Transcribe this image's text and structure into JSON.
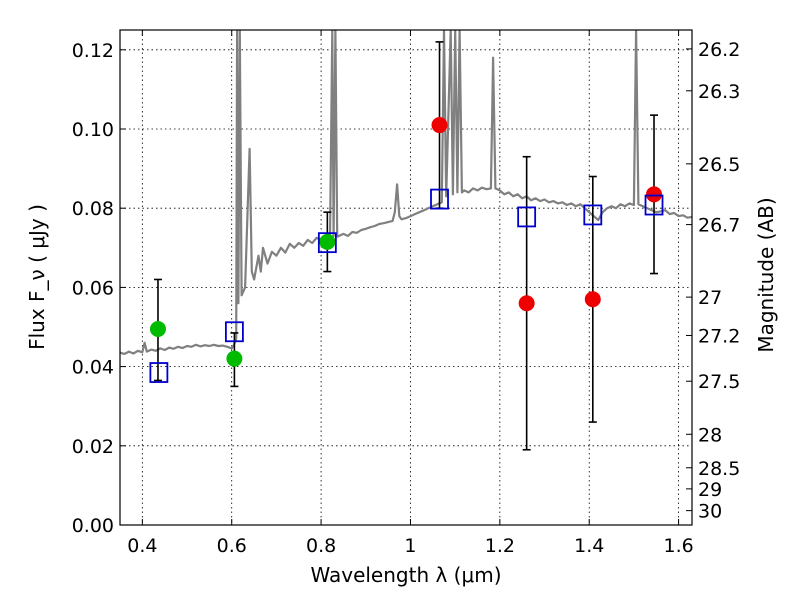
{
  "chart_data": {
    "type": "scatter",
    "xlabel": "Wavelength  λ (μm)",
    "ylabel": "Flux  F_ν  ( μJy )",
    "y2label": "Magnitude (AB)",
    "xlim": [
      0.35,
      1.63
    ],
    "ylim": [
      0.0,
      0.125
    ],
    "grid": true,
    "x_ticks": [
      "0.4",
      "0.6",
      "0.8",
      "1",
      "1.2",
      "1.4",
      "1.6"
    ],
    "y_ticks": [
      "0.00",
      "0.02",
      "0.04",
      "0.06",
      "0.08",
      "0.10",
      "0.12"
    ],
    "mag_ticks": [
      "26.2",
      "26.3",
      "26.5",
      "26.7",
      "27",
      "27.2",
      "27.5",
      "28",
      "28.5",
      "29",
      "30"
    ],
    "series": [
      {
        "marker": "circle",
        "color": "#00bb00",
        "points": [
          {
            "x": 0.435,
            "y": 0.0495,
            "err_low": 0.0365,
            "err_high": 0.062
          },
          {
            "x": 0.606,
            "y": 0.042,
            "err_low": 0.035,
            "err_high": 0.0485
          },
          {
            "x": 0.814,
            "y": 0.0715,
            "err_low": 0.064,
            "err_high": 0.079
          }
        ]
      },
      {
        "marker": "circle",
        "color": "#ee0000",
        "points": [
          {
            "x": 1.065,
            "y": 0.101,
            "err_low": 0.08,
            "err_high": 0.122
          },
          {
            "x": 1.26,
            "y": 0.056,
            "err_low": 0.019,
            "err_high": 0.093
          },
          {
            "x": 1.408,
            "y": 0.057,
            "err_low": 0.026,
            "err_high": 0.088
          },
          {
            "x": 1.545,
            "y": 0.0835,
            "err_low": 0.0635,
            "err_high": 0.1035
          }
        ]
      },
      {
        "marker": "open-square",
        "color": "#0000cc",
        "points": [
          {
            "x": 0.437,
            "y": 0.0385
          },
          {
            "x": 0.606,
            "y": 0.0488
          },
          {
            "x": 0.814,
            "y": 0.0713
          },
          {
            "x": 1.065,
            "y": 0.0823
          },
          {
            "x": 1.26,
            "y": 0.0778
          },
          {
            "x": 1.408,
            "y": 0.0783
          },
          {
            "x": 1.545,
            "y": 0.0808
          }
        ]
      }
    ],
    "spectrum": {
      "color": "#808080",
      "points": [
        [
          0.35,
          0.0435
        ],
        [
          0.36,
          0.0432
        ],
        [
          0.37,
          0.0438
        ],
        [
          0.38,
          0.0433
        ],
        [
          0.39,
          0.044
        ],
        [
          0.4,
          0.0436
        ],
        [
          0.405,
          0.046
        ],
        [
          0.41,
          0.0438
        ],
        [
          0.42,
          0.0443
        ],
        [
          0.43,
          0.044
        ],
        [
          0.44,
          0.0446
        ],
        [
          0.45,
          0.0442
        ],
        [
          0.46,
          0.0448
        ],
        [
          0.47,
          0.0445
        ],
        [
          0.48,
          0.045
        ],
        [
          0.49,
          0.0447
        ],
        [
          0.5,
          0.0452
        ],
        [
          0.51,
          0.045
        ],
        [
          0.52,
          0.0455
        ],
        [
          0.53,
          0.0451
        ],
        [
          0.54,
          0.0454
        ],
        [
          0.55,
          0.0452
        ],
        [
          0.56,
          0.0455
        ],
        [
          0.57,
          0.0452
        ],
        [
          0.58,
          0.0453
        ],
        [
          0.59,
          0.045
        ],
        [
          0.6,
          0.0446
        ],
        [
          0.605,
          0.0455
        ],
        [
          0.61,
          0.047
        ],
        [
          0.612,
          0.125
        ],
        [
          0.615,
          0.056
        ],
        [
          0.618,
          0.125
        ],
        [
          0.622,
          0.058
        ],
        [
          0.63,
          0.06
        ],
        [
          0.64,
          0.095
        ],
        [
          0.645,
          0.064
        ],
        [
          0.65,
          0.062
        ],
        [
          0.66,
          0.068
        ],
        [
          0.665,
          0.064
        ],
        [
          0.67,
          0.07
        ],
        [
          0.68,
          0.066
        ],
        [
          0.69,
          0.069
        ],
        [
          0.7,
          0.068
        ],
        [
          0.71,
          0.07
        ],
        [
          0.72,
          0.0688
        ],
        [
          0.73,
          0.071
        ],
        [
          0.74,
          0.07
        ],
        [
          0.75,
          0.0712
        ],
        [
          0.76,
          0.0705
        ],
        [
          0.77,
          0.072
        ],
        [
          0.78,
          0.0712
        ],
        [
          0.79,
          0.0725
        ],
        [
          0.8,
          0.072
        ],
        [
          0.81,
          0.0728
        ],
        [
          0.82,
          0.0722
        ],
        [
          0.825,
          0.125
        ],
        [
          0.828,
          0.073
        ],
        [
          0.832,
          0.125
        ],
        [
          0.836,
          0.0728
        ],
        [
          0.85,
          0.0735
        ],
        [
          0.86,
          0.073
        ],
        [
          0.87,
          0.074
        ],
        [
          0.88,
          0.0738
        ],
        [
          0.89,
          0.0745
        ],
        [
          0.9,
          0.0748
        ],
        [
          0.91,
          0.0752
        ],
        [
          0.92,
          0.0755
        ],
        [
          0.93,
          0.076
        ],
        [
          0.94,
          0.0762
        ],
        [
          0.95,
          0.0765
        ],
        [
          0.96,
          0.0768
        ],
        [
          0.965,
          0.079
        ],
        [
          0.97,
          0.086
        ],
        [
          0.975,
          0.078
        ],
        [
          0.98,
          0.0772
        ],
        [
          0.99,
          0.0775
        ],
        [
          1.0,
          0.078
        ],
        [
          1.01,
          0.0785
        ],
        [
          1.02,
          0.079
        ],
        [
          1.03,
          0.0795
        ],
        [
          1.04,
          0.08
        ],
        [
          1.05,
          0.0805
        ],
        [
          1.06,
          0.081
        ],
        [
          1.07,
          0.0815
        ],
        [
          1.075,
          0.125
        ],
        [
          1.08,
          0.083
        ],
        [
          1.09,
          0.125
        ],
        [
          1.095,
          0.0835
        ],
        [
          1.1,
          0.125
        ],
        [
          1.105,
          0.084
        ],
        [
          1.11,
          0.125
        ],
        [
          1.115,
          0.084
        ],
        [
          1.12,
          0.0845
        ],
        [
          1.13,
          0.084
        ],
        [
          1.14,
          0.085
        ],
        [
          1.15,
          0.0845
        ],
        [
          1.16,
          0.0852
        ],
        [
          1.17,
          0.0848
        ],
        [
          1.18,
          0.085
        ],
        [
          1.185,
          0.118
        ],
        [
          1.19,
          0.085
        ],
        [
          1.2,
          0.0845
        ],
        [
          1.21,
          0.0835
        ],
        [
          1.22,
          0.084
        ],
        [
          1.23,
          0.083
        ],
        [
          1.24,
          0.0835
        ],
        [
          1.25,
          0.0825
        ],
        [
          1.26,
          0.083
        ],
        [
          1.27,
          0.082
        ],
        [
          1.28,
          0.0825
        ],
        [
          1.29,
          0.0818
        ],
        [
          1.3,
          0.0822
        ],
        [
          1.31,
          0.0815
        ],
        [
          1.32,
          0.0818
        ],
        [
          1.33,
          0.0812
        ],
        [
          1.34,
          0.0815
        ],
        [
          1.35,
          0.0808
        ],
        [
          1.36,
          0.0812
        ],
        [
          1.37,
          0.0805
        ],
        [
          1.38,
          0.081
        ],
        [
          1.39,
          0.08
        ],
        [
          1.4,
          0.079
        ],
        [
          1.41,
          0.078
        ],
        [
          1.42,
          0.077
        ],
        [
          1.43,
          0.079
        ],
        [
          1.44,
          0.08
        ],
        [
          1.45,
          0.0805
        ],
        [
          1.46,
          0.08
        ],
        [
          1.47,
          0.081
        ],
        [
          1.48,
          0.0805
        ],
        [
          1.49,
          0.0812
        ],
        [
          1.5,
          0.0808
        ],
        [
          1.505,
          0.125
        ],
        [
          1.51,
          0.081
        ],
        [
          1.52,
          0.0805
        ],
        [
          1.53,
          0.08
        ],
        [
          1.54,
          0.0795
        ],
        [
          1.55,
          0.079
        ],
        [
          1.56,
          0.0792
        ],
        [
          1.57,
          0.0795
        ],
        [
          1.58,
          0.0785
        ],
        [
          1.59,
          0.0788
        ],
        [
          1.6,
          0.078
        ],
        [
          1.61,
          0.0782
        ],
        [
          1.62,
          0.0776
        ],
        [
          1.63,
          0.0778
        ]
      ]
    }
  }
}
